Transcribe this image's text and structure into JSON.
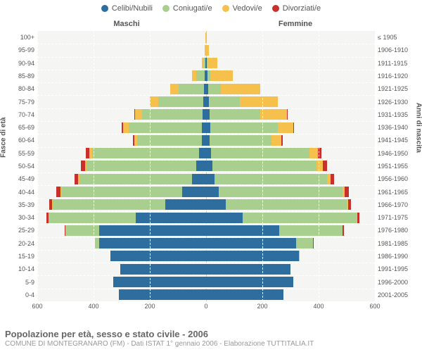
{
  "legend": [
    {
      "label": "Celibi/Nubili",
      "color": "#2e6e9e"
    },
    {
      "label": "Coniugati/e",
      "color": "#a9cf8f"
    },
    {
      "label": "Vedovi/e",
      "color": "#f6c04d"
    },
    {
      "label": "Divorziati/e",
      "color": "#c9302c"
    }
  ],
  "headers": {
    "male": "Maschi",
    "female": "Femmine"
  },
  "y_left_title": "Fasce di età",
  "y_right_title": "Anni di nascita",
  "chart": {
    "xmax": 600,
    "xticks": [
      600,
      400,
      200,
      0,
      200,
      400,
      600
    ],
    "grid_color": "#ffffff",
    "bg": "#f5f5f3",
    "rows": [
      {
        "age": "100+",
        "birth": "≤ 1905",
        "m": {
          "c": 0,
          "j": 0,
          "w": 2,
          "d": 0
        },
        "f": {
          "c": 0,
          "j": 0,
          "w": 2,
          "d": 0
        }
      },
      {
        "age": "95-99",
        "birth": "1906-1910",
        "m": {
          "c": 0,
          "j": 0,
          "w": 4,
          "d": 0
        },
        "f": {
          "c": 0,
          "j": 0,
          "w": 10,
          "d": 0
        }
      },
      {
        "age": "90-94",
        "birth": "1911-1915",
        "m": {
          "c": 2,
          "j": 6,
          "w": 8,
          "d": 0
        },
        "f": {
          "c": 2,
          "j": 4,
          "w": 35,
          "d": 0
        }
      },
      {
        "age": "85-89",
        "birth": "1916-1920",
        "m": {
          "c": 4,
          "j": 30,
          "w": 15,
          "d": 0
        },
        "f": {
          "c": 4,
          "j": 10,
          "w": 80,
          "d": 0
        }
      },
      {
        "age": "80-84",
        "birth": "1921-1925",
        "m": {
          "c": 8,
          "j": 90,
          "w": 30,
          "d": 0
        },
        "f": {
          "c": 8,
          "j": 45,
          "w": 140,
          "d": 0
        }
      },
      {
        "age": "75-79",
        "birth": "1926-1930",
        "m": {
          "c": 10,
          "j": 160,
          "w": 30,
          "d": 0
        },
        "f": {
          "c": 10,
          "j": 110,
          "w": 135,
          "d": 0
        }
      },
      {
        "age": "70-74",
        "birth": "1931-1935",
        "m": {
          "c": 12,
          "j": 215,
          "w": 25,
          "d": 2
        },
        "f": {
          "c": 12,
          "j": 180,
          "w": 95,
          "d": 2
        }
      },
      {
        "age": "65-69",
        "birth": "1936-1940",
        "m": {
          "c": 15,
          "j": 260,
          "w": 20,
          "d": 4
        },
        "f": {
          "c": 14,
          "j": 240,
          "w": 55,
          "d": 4
        }
      },
      {
        "age": "60-64",
        "birth": "1941-1945",
        "m": {
          "c": 15,
          "j": 230,
          "w": 10,
          "d": 5
        },
        "f": {
          "c": 12,
          "j": 220,
          "w": 35,
          "d": 5
        }
      },
      {
        "age": "55-59",
        "birth": "1946-1950",
        "m": {
          "c": 25,
          "j": 380,
          "w": 10,
          "d": 12
        },
        "f": {
          "c": 18,
          "j": 350,
          "w": 30,
          "d": 12
        }
      },
      {
        "age": "50-54",
        "birth": "1951-1955",
        "m": {
          "c": 35,
          "j": 390,
          "w": 6,
          "d": 15
        },
        "f": {
          "c": 22,
          "j": 370,
          "w": 22,
          "d": 15
        }
      },
      {
        "age": "45-49",
        "birth": "1956-1960",
        "m": {
          "c": 50,
          "j": 400,
          "w": 4,
          "d": 14
        },
        "f": {
          "c": 30,
          "j": 400,
          "w": 12,
          "d": 14
        }
      },
      {
        "age": "40-44",
        "birth": "1961-1965",
        "m": {
          "c": 85,
          "j": 430,
          "w": 3,
          "d": 14
        },
        "f": {
          "c": 45,
          "j": 440,
          "w": 8,
          "d": 14
        }
      },
      {
        "age": "35-39",
        "birth": "1966-1970",
        "m": {
          "c": 145,
          "j": 400,
          "w": 2,
          "d": 10
        },
        "f": {
          "c": 70,
          "j": 430,
          "w": 5,
          "d": 10
        }
      },
      {
        "age": "30-34",
        "birth": "1971-1975",
        "m": {
          "c": 250,
          "j": 310,
          "w": 1,
          "d": 6
        },
        "f": {
          "c": 130,
          "j": 405,
          "w": 3,
          "d": 8
        }
      },
      {
        "age": "25-29",
        "birth": "1976-1980",
        "m": {
          "c": 380,
          "j": 120,
          "w": 0,
          "d": 2
        },
        "f": {
          "c": 260,
          "j": 225,
          "w": 1,
          "d": 3
        }
      },
      {
        "age": "20-24",
        "birth": "1981-1985",
        "m": {
          "c": 380,
          "j": 15,
          "w": 0,
          "d": 0
        },
        "f": {
          "c": 320,
          "j": 60,
          "w": 0,
          "d": 1
        }
      },
      {
        "age": "15-19",
        "birth": "1986-1990",
        "m": {
          "c": 340,
          "j": 0,
          "w": 0,
          "d": 0
        },
        "f": {
          "c": 330,
          "j": 2,
          "w": 0,
          "d": 0
        }
      },
      {
        "age": "10-14",
        "birth": "1991-1995",
        "m": {
          "c": 305,
          "j": 0,
          "w": 0,
          "d": 0
        },
        "f": {
          "c": 300,
          "j": 0,
          "w": 0,
          "d": 0
        }
      },
      {
        "age": "5-9",
        "birth": "1996-2000",
        "m": {
          "c": 330,
          "j": 0,
          "w": 0,
          "d": 0
        },
        "f": {
          "c": 310,
          "j": 0,
          "w": 0,
          "d": 0
        }
      },
      {
        "age": "0-4",
        "birth": "2001-2005",
        "m": {
          "c": 310,
          "j": 0,
          "w": 0,
          "d": 0
        },
        "f": {
          "c": 275,
          "j": 0,
          "w": 0,
          "d": 0
        }
      }
    ]
  },
  "footer": {
    "title": "Popolazione per età, sesso e stato civile - 2006",
    "sub": "COMUNE DI MONTEGRANARO (FM) - Dati ISTAT 1° gennaio 2006 - Elaborazione TUTTITALIA.IT"
  }
}
